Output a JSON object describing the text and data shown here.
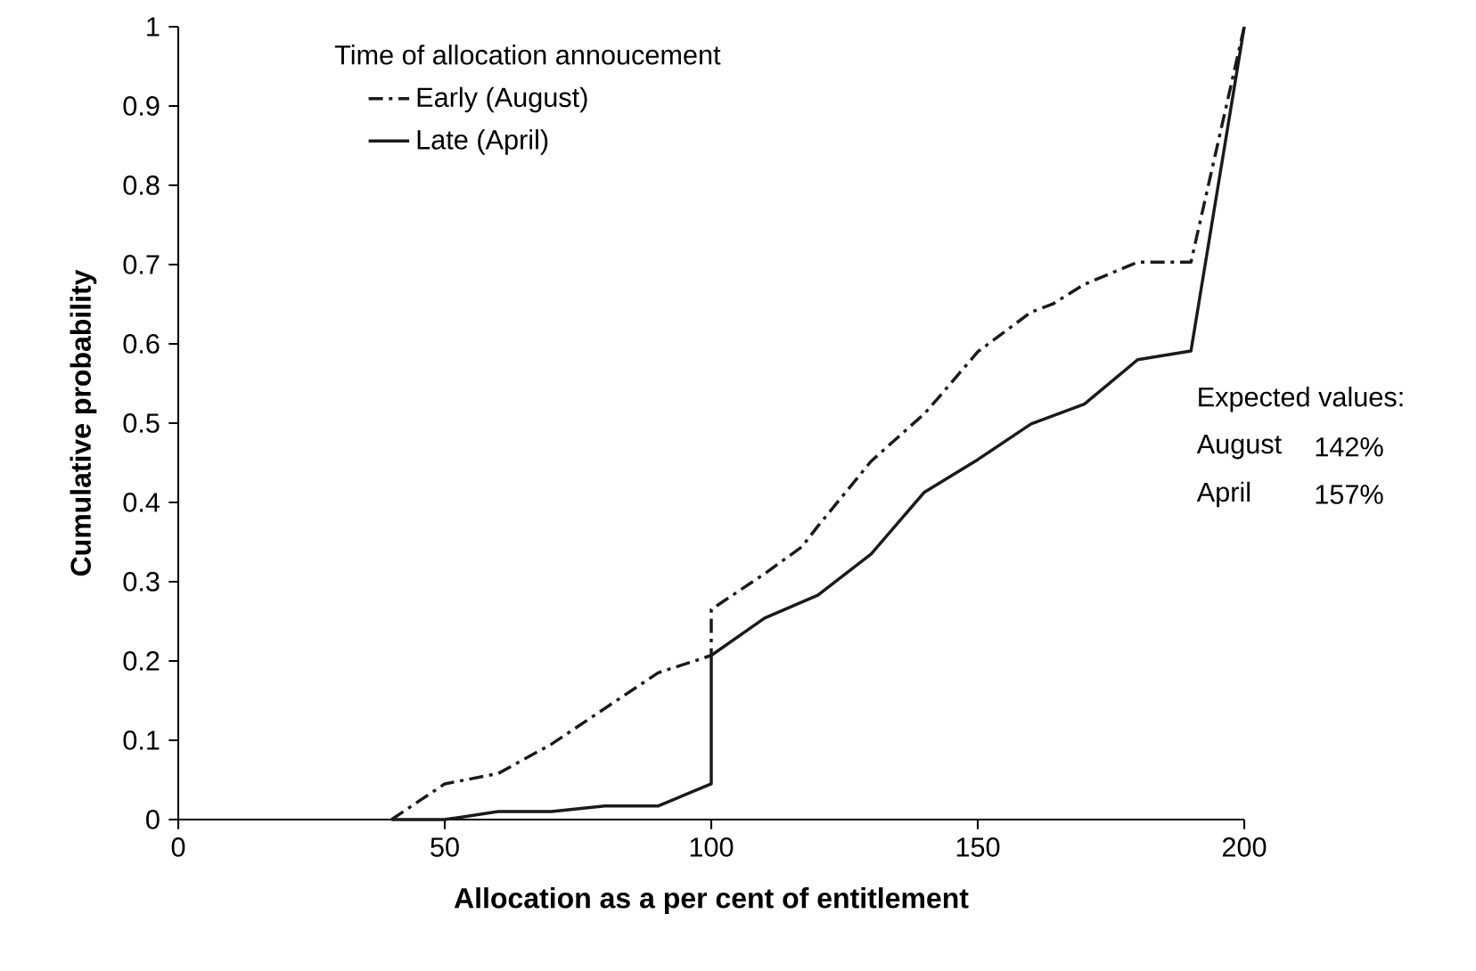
{
  "chart_data": {
    "type": "line",
    "xlabel": "Allocation as a per cent of entitlement",
    "ylabel": "Cumulative probability",
    "legend_title": "Time of allocation annoucement",
    "series": [
      {
        "name": "Early (August)",
        "color": "#1a1a1a",
        "line_style": "dashed",
        "x": [
          40,
          50,
          60,
          70,
          80,
          90,
          100,
          100,
          110,
          117,
          120,
          130,
          140,
          143,
          150,
          160,
          164,
          170,
          180,
          190,
          200
        ],
        "values": [
          0,
          0.045,
          0.058,
          0.095,
          0.14,
          0.185,
          0.207,
          0.265,
          0.31,
          0.344,
          0.37,
          0.452,
          0.512,
          0.535,
          0.59,
          0.64,
          0.65,
          0.675,
          0.703,
          0.703,
          1.0
        ]
      },
      {
        "name": "Late (April)",
        "color": "#1a1a1a",
        "line_style": "solid",
        "x": [
          40,
          50,
          60,
          70,
          80,
          90,
          100,
          100,
          110,
          120,
          130,
          140,
          150,
          160,
          170,
          180,
          190,
          200
        ],
        "values": [
          0,
          0,
          0.01,
          0.01,
          0.017,
          0.017,
          0.045,
          0.207,
          0.254,
          0.283,
          0.335,
          0.413,
          0.454,
          0.499,
          0.524,
          0.58,
          0.591,
          1.0
        ]
      }
    ],
    "annotations": [
      "Expected values:",
      "August",
      "142%",
      "April",
      "157%"
    ],
    "xlim": [
      0,
      200
    ],
    "ylim": [
      0,
      1
    ],
    "xticks": [
      0,
      50,
      100,
      150,
      200
    ],
    "yticks": [
      0,
      0.1,
      0.2,
      0.3,
      0.4,
      0.5,
      0.6,
      0.7,
      0.8,
      0.9,
      1
    ],
    "grid": false,
    "legend": "top left",
    "marker": "none"
  }
}
